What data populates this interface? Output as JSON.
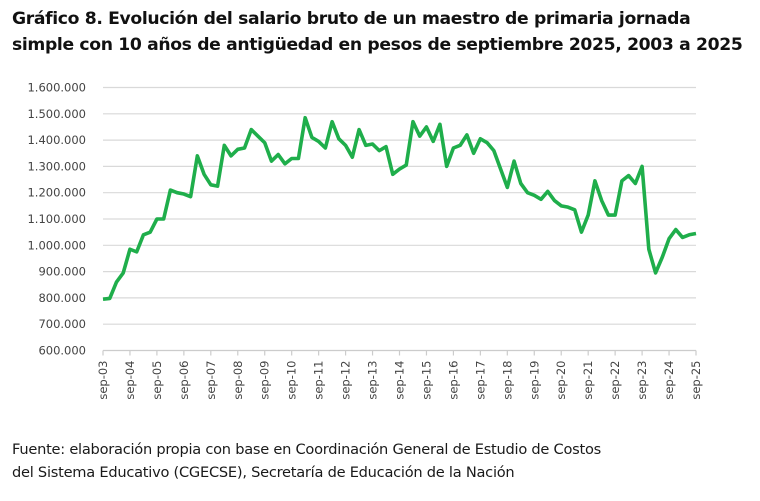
{
  "title": {
    "line1": "Gráfico 8.  Evolución del salario bruto de un maestro de primaria jornada",
    "line2": "simple con 10 años de antigüedad en pesos de septiembre 2025, 2003 a 2025"
  },
  "source": {
    "line1": "Fuente: elaboración propia con base en Coordinación General de Estudio de Costos",
    "line2": "del Sistema Educativo (CGECSE), Secretaría de Educación de la Nación"
  },
  "colors": {
    "line": "#1fae4b",
    "grid": "#d9d9d9",
    "axis": "#cccccc"
  },
  "chart_data": {
    "type": "line",
    "title": "Evolución del salario bruto de un maestro de primaria jornada simple con 10 años de antigüedad en pesos de septiembre 2025, 2003 a 2025",
    "xlabel": "",
    "ylabel": "",
    "ylim": [
      600000,
      1600000
    ],
    "yticks": [
      600000,
      700000,
      800000,
      900000,
      1000000,
      1100000,
      1200000,
      1300000,
      1400000,
      1500000,
      1600000
    ],
    "ytick_labels": [
      "600.000",
      "700.000",
      "800.000",
      "900.000",
      "1.000.000",
      "1.100.000",
      "1.200.000",
      "1.300.000",
      "1.400.000",
      "1.500.000",
      "1.600.000"
    ],
    "grid": true,
    "legend": "none",
    "xtick_labels": [
      "sep-03",
      "sep-04",
      "sep-05",
      "sep-06",
      "sep-07",
      "sep-08",
      "sep-09",
      "sep-10",
      "sep-11",
      "sep-12",
      "sep-13",
      "sep-14",
      "sep-15",
      "sep-16",
      "sep-17",
      "sep-18",
      "sep-19",
      "sep-20",
      "sep-21",
      "sep-22",
      "sep-23",
      "sep-24",
      "sep-25"
    ],
    "x_frequency": "quarterly",
    "x_start": "sep-03",
    "series": [
      {
        "name": "Salario bruto (pesos de septiembre 2025)",
        "values": [
          795000,
          798000,
          860000,
          895000,
          985000,
          975000,
          1040000,
          1050000,
          1100000,
          1100000,
          1210000,
          1200000,
          1195000,
          1185000,
          1340000,
          1270000,
          1230000,
          1225000,
          1380000,
          1340000,
          1365000,
          1370000,
          1440000,
          1415000,
          1390000,
          1320000,
          1345000,
          1310000,
          1330000,
          1330000,
          1485000,
          1410000,
          1395000,
          1370000,
          1470000,
          1405000,
          1380000,
          1335000,
          1440000,
          1380000,
          1385000,
          1360000,
          1375000,
          1270000,
          1290000,
          1305000,
          1470000,
          1415000,
          1450000,
          1395000,
          1460000,
          1300000,
          1370000,
          1380000,
          1420000,
          1350000,
          1405000,
          1390000,
          1360000,
          1290000,
          1220000,
          1320000,
          1235000,
          1200000,
          1190000,
          1175000,
          1205000,
          1170000,
          1150000,
          1145000,
          1135000,
          1050000,
          1115000,
          1245000,
          1170000,
          1115000,
          1115000,
          1245000,
          1265000,
          1235000,
          1300000,
          985000,
          895000,
          955000,
          1025000,
          1060000,
          1030000,
          1040000,
          1045000
        ]
      }
    ]
  }
}
